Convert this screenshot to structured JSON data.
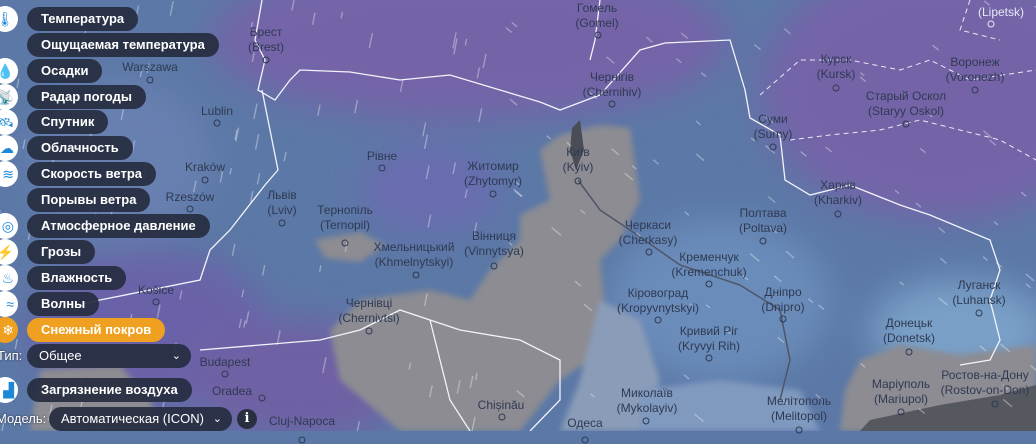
{
  "colors": {
    "accent": "#f0a020",
    "pill": "#262c40",
    "snow": "#8c8c92",
    "base": "#5b78a6",
    "purple": "#7464a8"
  },
  "layers": [
    {
      "label": "Температура",
      "icon": "thermometer-icon",
      "glyph": "🌡"
    },
    {
      "label": "Ощущаемая температура",
      "icon": "",
      "glyph": ""
    },
    {
      "label": "Осадки",
      "icon": "drop-icon",
      "glyph": "💧"
    },
    {
      "label": "Радар погоды",
      "icon": "radar-icon",
      "glyph": "📡"
    },
    {
      "label": "Спутник",
      "icon": "satellite-icon",
      "glyph": "🛰"
    },
    {
      "label": "Облачность",
      "icon": "cloud-icon",
      "glyph": "☁"
    },
    {
      "label": "Скорость ветра",
      "icon": "wind-icon",
      "glyph": "≋"
    },
    {
      "label": "Порывы ветра",
      "icon": "",
      "glyph": ""
    },
    {
      "label": "Атмосферное давление",
      "icon": "gauge-icon",
      "glyph": "◎"
    },
    {
      "label": "Грозы",
      "icon": "lightning-icon",
      "glyph": "⚡"
    },
    {
      "label": "Влажность",
      "icon": "humidity-icon",
      "glyph": "♨"
    },
    {
      "label": "Волны",
      "icon": "waves-icon",
      "glyph": "≈"
    },
    {
      "label": "Снежный покров",
      "icon": "snowflake-icon",
      "glyph": "❄",
      "active": true
    }
  ],
  "type": {
    "label": "Тип:",
    "value": "Общее"
  },
  "pollution": {
    "label": "Загрязнение воздуха",
    "icon": "factory-icon",
    "glyph": "🏭"
  },
  "model": {
    "label": "Модель:",
    "value": "Автоматическая (ICON)",
    "info": "i"
  },
  "cities": [
    {
      "l1": "Warszawa",
      "l2": ""
    },
    {
      "l1": "Брест",
      "l2": "(Brest)"
    },
    {
      "l1": "Lublin",
      "l2": ""
    },
    {
      "l1": "Rzeszów",
      "l2": ""
    },
    {
      "l1": "Kraków",
      "l2": ""
    },
    {
      "l1": "Košice",
      "l2": ""
    },
    {
      "l1": "Budapest",
      "l2": ""
    },
    {
      "l1": "Oradea",
      "l2": ""
    },
    {
      "l1": "Cluj-Napoca",
      "l2": ""
    },
    {
      "l1": "Гомель",
      "l2": "(Gomel)"
    },
    {
      "l1": "Чернігів",
      "l2": "(Chernihiv)"
    },
    {
      "l1": "Рівне",
      "l2": ""
    },
    {
      "l1": "Житомир",
      "l2": "(Zhytomyr)"
    },
    {
      "l1": "Київ",
      "l2": "(Kyiv)"
    },
    {
      "l1": "Львів",
      "l2": "(Lviv)"
    },
    {
      "l1": "Тернопіль",
      "l2": "(Ternopil)"
    },
    {
      "l1": "Хмельницький",
      "l2": "(Khmelnytskyi)"
    },
    {
      "l1": "Вінниця",
      "l2": "(Vinnytsya)"
    },
    {
      "l1": "Чернівці",
      "l2": "(Chernivtsi)"
    },
    {
      "l1": "Chișinău",
      "l2": ""
    },
    {
      "l1": "Одеса",
      "l2": ""
    },
    {
      "l1": "Миколаїв",
      "l2": "(Mykolayiv)"
    },
    {
      "l1": "Черкаси",
      "l2": "(Cherkasy)"
    },
    {
      "l1": "Кременчук",
      "l2": "(Kremenchuk)"
    },
    {
      "l1": "Кіровоград",
      "l2": "(Kropyvnytskyi)"
    },
    {
      "l1": "Кривий Ріг",
      "l2": "(Kryvyi Rih)"
    },
    {
      "l1": "Дніпро",
      "l2": "(Dnipro)"
    },
    {
      "l1": "Мелітополь",
      "l2": "(Melitopol)"
    },
    {
      "l1": "Полтава",
      "l2": "(Poltava)"
    },
    {
      "l1": "Суми",
      "l2": "(Sumy)"
    },
    {
      "l1": "Харків",
      "l2": "(Kharkiv)"
    },
    {
      "l1": "Курск",
      "l2": "(Kursk)"
    },
    {
      "l1": "Старый Оскол",
      "l2": "(Staryy Oskol)"
    },
    {
      "l1": "Воронеж",
      "l2": "(Voronezh)"
    },
    {
      "l1": "(Lipetsk)",
      "l2": ""
    },
    {
      "l1": "Луганск",
      "l2": "(Luhansk)"
    },
    {
      "l1": "Донецьк",
      "l2": "(Donetsk)"
    },
    {
      "l1": "Маріуполь",
      "l2": "(Mariupol)"
    },
    {
      "l1": "Ростов-на-Дону",
      "l2": "(Rostov-on-Don)"
    }
  ]
}
